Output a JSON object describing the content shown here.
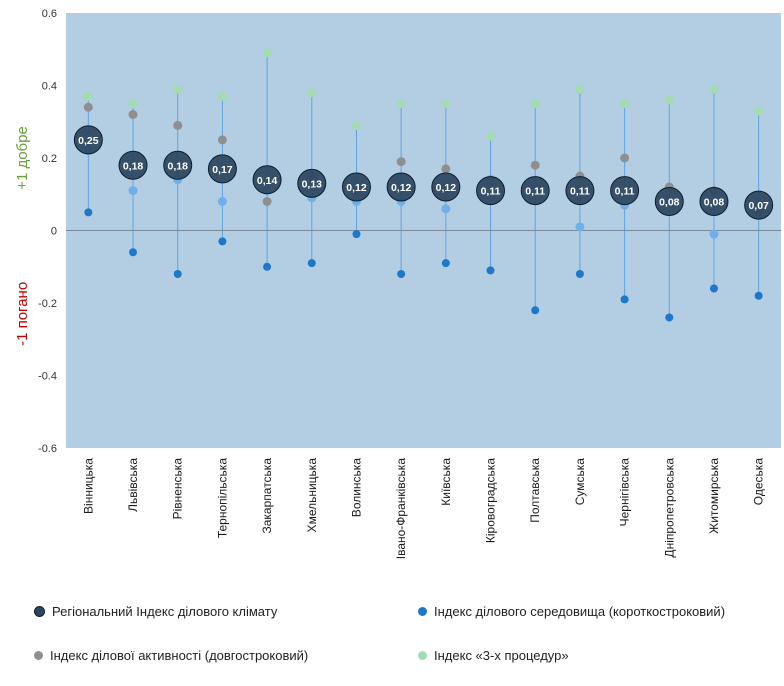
{
  "chart_data": {
    "type": "scatter",
    "ylim": [
      -0.6,
      0.6
    ],
    "yticks": [
      "-0.6",
      "-0.4",
      "-0.2",
      "0",
      "0.2",
      "0.4",
      "0.6"
    ],
    "ylabel_good": "+1 добре",
    "ylabel_bad": "-1 погано",
    "grid": false,
    "legend_position": "bottom",
    "categories": [
      "Вінницька",
      "Львівська",
      "Рівненська",
      "Тернопільська",
      "Закарпатська",
      "Хмельницька",
      "Волинська",
      "Івано-Франківська",
      "Київська",
      "Кіровоградська",
      "Полтавська",
      "Сумська",
      "Чернігівська",
      "Дніпропетровська",
      "Житомирська",
      "Одеська"
    ],
    "series": [
      {
        "name": "Регіональний Індекс ділового  клімату",
        "color": "#2b4560",
        "values": [
          0.25,
          0.18,
          0.18,
          0.17,
          0.14,
          0.13,
          0.12,
          0.12,
          0.12,
          0.11,
          0.11,
          0.11,
          0.11,
          0.08,
          0.08,
          0.07
        ],
        "labels": [
          "0,25",
          "0,18",
          "0,18",
          "0,17",
          "0,14",
          "0,13",
          "0,12",
          "0,12",
          "0,12",
          "0,11",
          "0,11",
          "0,11",
          "0,11",
          "0,08",
          "0,08",
          "0,07"
        ]
      },
      {
        "name": "Індекс ділового середовища (короткостроковий)",
        "color": "#1f77c8",
        "values": [
          0.05,
          -0.06,
          -0.12,
          -0.03,
          -0.1,
          -0.09,
          -0.01,
          -0.12,
          -0.09,
          -0.11,
          -0.22,
          -0.12,
          -0.19,
          -0.24,
          -0.16,
          -0.18
        ]
      },
      {
        "name": "Індекс ділової активності (довгостроковий)",
        "color": "#8f8f8f",
        "values": [
          0.34,
          0.32,
          0.29,
          0.25,
          0.08,
          0.15,
          0.11,
          0.19,
          0.17,
          0.14,
          0.18,
          0.15,
          0.2,
          0.12,
          0.11,
          0.05
        ]
      },
      {
        "name": "Індекс «3-х процедур»",
        "color": "#a3dcb0",
        "values": [
          0.37,
          0.35,
          0.39,
          0.37,
          0.49,
          0.38,
          0.29,
          0.35,
          0.35,
          0.26,
          0.35,
          0.39,
          0.35,
          0.36,
          0.39,
          0.33
        ]
      }
    ],
    "extra_points": {
      "color": "#6fb0ea",
      "values": [
        0.22,
        0.11,
        0.14,
        0.08,
        0.11,
        0.09,
        0.08,
        0.08,
        0.06,
        0.13,
        0.12,
        0.01,
        0.07,
        0.08,
        -0.01,
        0.07
      ]
    },
    "colors": {
      "plot_bg": "#b3cde3",
      "stem": "#5ea3e6",
      "zero_line": "#7a8a9a",
      "good_label": "#6a9e3a",
      "bad_label": "#c00000"
    }
  }
}
